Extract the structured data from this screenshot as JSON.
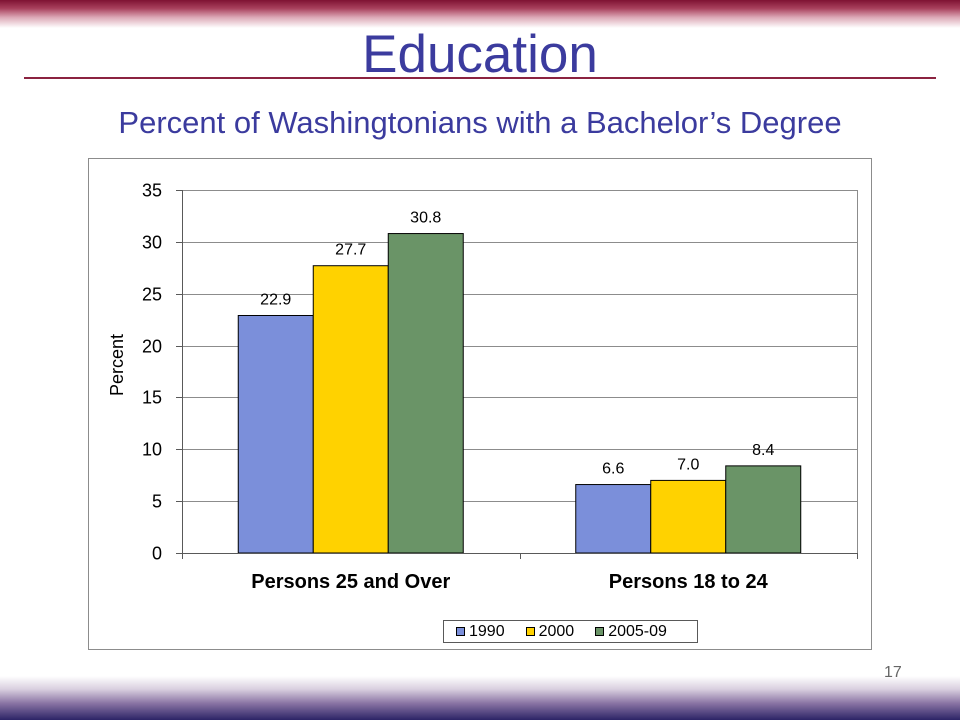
{
  "slide": {
    "title": "Education",
    "subtitle": "Percent of Washingtonians with a Bachelor’s Degree",
    "page_number": "17"
  },
  "colors": {
    "title_text": "#3b3b9e",
    "title_rule": "#8b2340",
    "top_band": "#7e1232",
    "bottom_band": "#2c2466"
  },
  "chart_data": {
    "type": "bar",
    "categories": [
      "Persons 25 and Over",
      "Persons 18 to 24"
    ],
    "series": [
      {
        "name": "1990",
        "values": [
          22.9,
          6.6
        ],
        "labels": [
          "22.9",
          "6.6"
        ],
        "color": "#7b8fda"
      },
      {
        "name": "2000",
        "values": [
          27.7,
          7.0
        ],
        "labels": [
          "27.7",
          "7.0"
        ],
        "color": "#ffd200"
      },
      {
        "name": "2005-09",
        "values": [
          30.8,
          8.4
        ],
        "labels": [
          "30.8",
          "8.4"
        ],
        "color": "#6a9467"
      }
    ],
    "ylabel": "Percent",
    "ylim": [
      0,
      35
    ],
    "yticks": [
      0,
      5,
      10,
      15,
      20,
      25,
      30,
      35
    ],
    "grid": true,
    "legend": "bottom"
  }
}
